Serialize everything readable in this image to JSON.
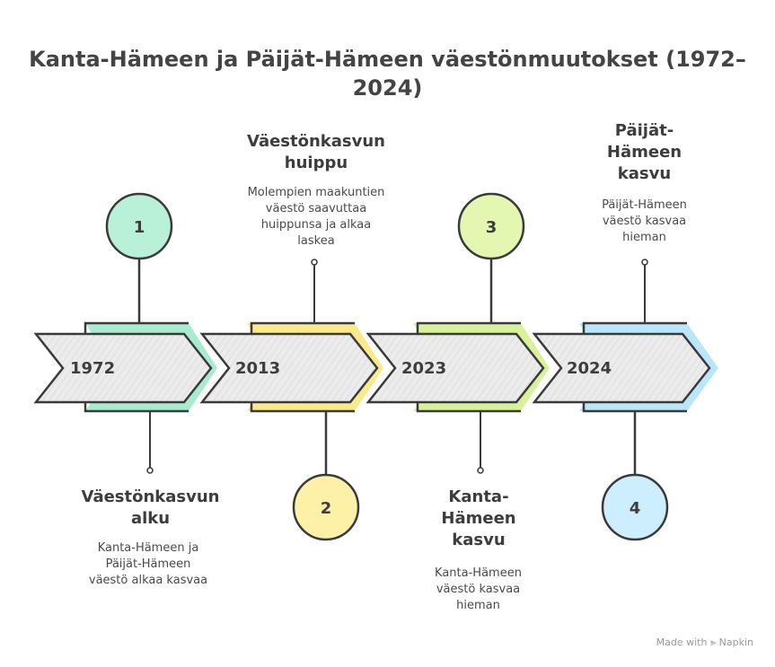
{
  "title": "Kanta-Hämeen ja Päijät-Hämeen väestönmuutokset (1972–2024)",
  "footer": {
    "made_with": "Made with",
    "brand": "Napkin"
  },
  "steps": [
    {
      "year": "1972",
      "number": "1",
      "color": "#b8f0d8",
      "accent": "#9be8c4",
      "title": "Väestönkasvun alku",
      "description": "Kanta-Hämeen ja Päijät-Hämeen väestö alkaa kasvaa"
    },
    {
      "year": "2013",
      "number": "2",
      "color": "#fdf1a8",
      "accent": "#fbe98a",
      "title": "Väestönkasvun huippu",
      "description": "Molempien maakuntien väestö saavuttaa huippunsa ja alkaa laskea"
    },
    {
      "year": "2023",
      "number": "3",
      "color": "#e4f7b0",
      "accent": "#d8f29a",
      "title": "Kanta-Hämeen kasvu",
      "description": "Kanta-Hämeen väestö kasvaa hieman"
    },
    {
      "year": "2024",
      "number": "4",
      "color": "#cdeefc",
      "accent": "#b9e6fa",
      "title": "Päijät-Hämeen kasvu",
      "description": "Päijät-Hämeen väestö kasvaa hieman"
    }
  ]
}
